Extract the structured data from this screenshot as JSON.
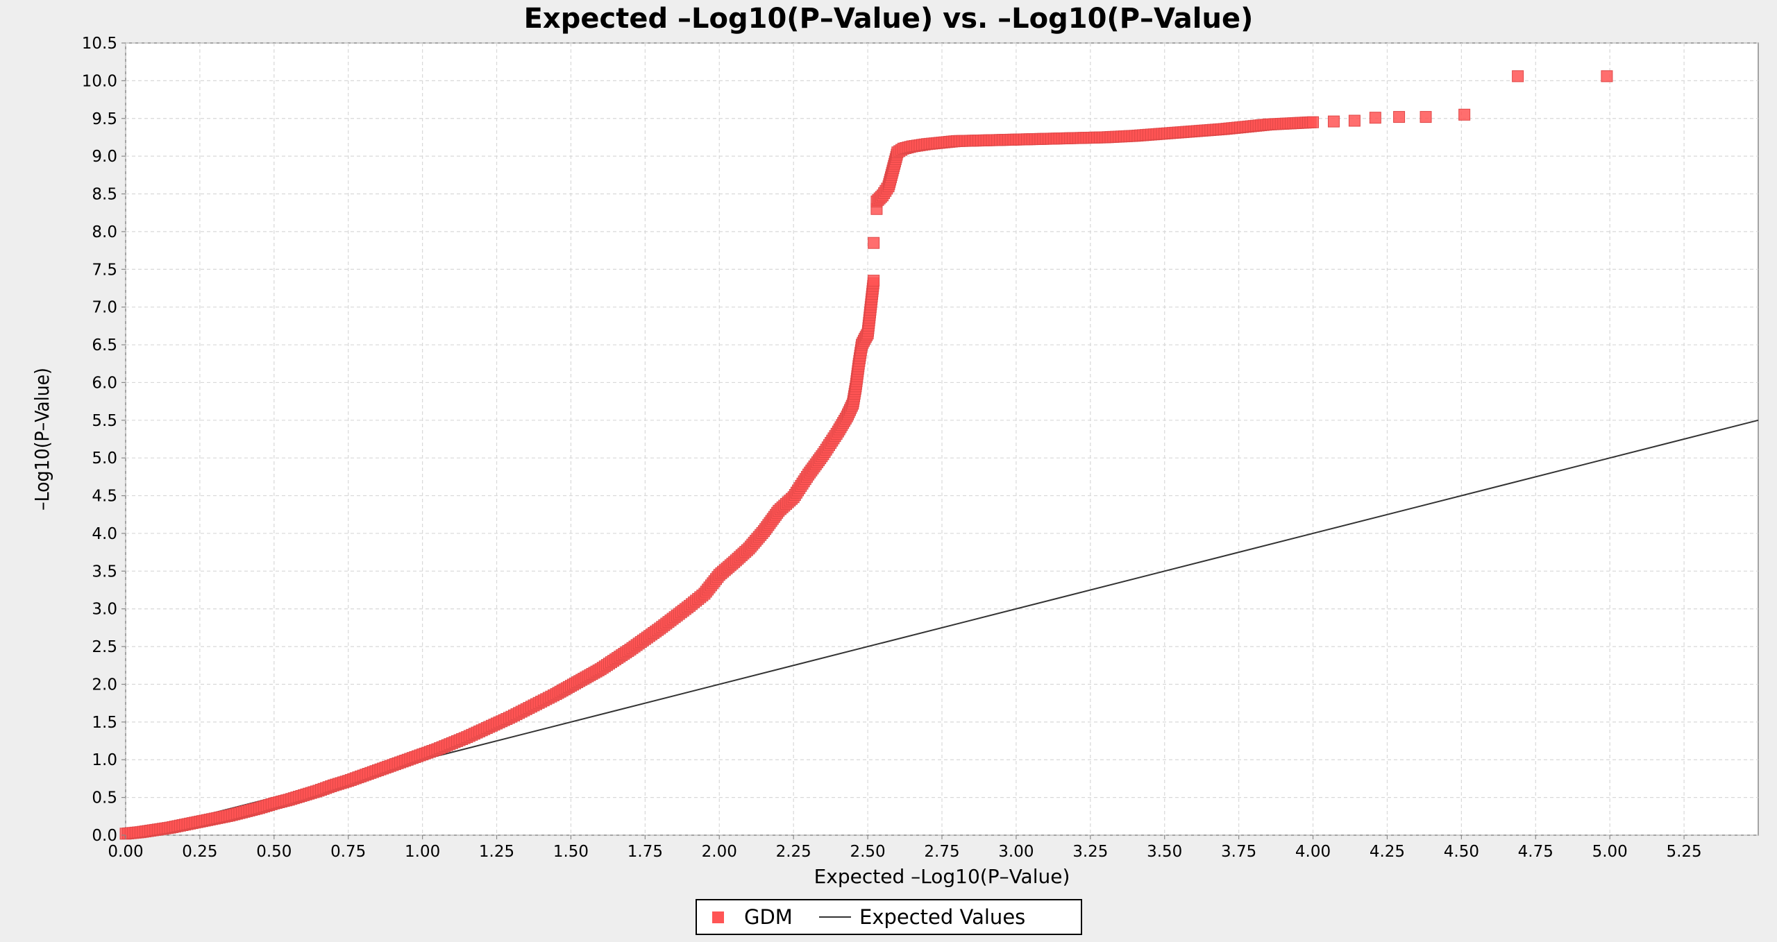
{
  "chart_data": {
    "type": "scatter",
    "title": "Expected –Log10(P–Value) vs. –Log10(P–Value)",
    "xlabel": "Expected –Log10(P–Value)",
    "ylabel": "–Log10(P–Value)",
    "xlim": [
      0,
      5.5
    ],
    "ylim": [
      0,
      10.5
    ],
    "x_ticks": [
      "0.00",
      "0.25",
      "0.50",
      "0.75",
      "1.00",
      "1.25",
      "1.50",
      "1.75",
      "2.00",
      "2.25",
      "2.50",
      "2.75",
      "3.00",
      "3.25",
      "3.50",
      "3.75",
      "4.00",
      "4.25",
      "4.50",
      "4.75",
      "5.00",
      "5.25"
    ],
    "y_ticks": [
      "0.0",
      "0.5",
      "1.0",
      "1.5",
      "2.0",
      "2.5",
      "3.0",
      "3.5",
      "4.0",
      "4.5",
      "5.0",
      "5.5",
      "6.0",
      "6.5",
      "7.0",
      "7.5",
      "8.0",
      "8.5",
      "9.0",
      "9.5",
      "10.0",
      "10.5"
    ],
    "grid": true,
    "legend_position": "bottom",
    "series": [
      {
        "name": "GDM",
        "kind": "scatter",
        "marker": "square",
        "color": "#ff5555",
        "points": [
          [
            0.0,
            0.02
          ],
          [
            0.05,
            0.04
          ],
          [
            0.1,
            0.07
          ],
          [
            0.15,
            0.1
          ],
          [
            0.2,
            0.14
          ],
          [
            0.25,
            0.18
          ],
          [
            0.3,
            0.22
          ],
          [
            0.35,
            0.26
          ],
          [
            0.4,
            0.31
          ],
          [
            0.45,
            0.36
          ],
          [
            0.5,
            0.42
          ],
          [
            0.55,
            0.47
          ],
          [
            0.6,
            0.53
          ],
          [
            0.65,
            0.59
          ],
          [
            0.7,
            0.66
          ],
          [
            0.75,
            0.72
          ],
          [
            0.8,
            0.79
          ],
          [
            0.85,
            0.86
          ],
          [
            0.9,
            0.93
          ],
          [
            0.95,
            1.0
          ],
          [
            1.0,
            1.07
          ],
          [
            1.05,
            1.14
          ],
          [
            1.1,
            1.22
          ],
          [
            1.15,
            1.3
          ],
          [
            1.2,
            1.39
          ],
          [
            1.25,
            1.48
          ],
          [
            1.3,
            1.57
          ],
          [
            1.35,
            1.67
          ],
          [
            1.4,
            1.77
          ],
          [
            1.45,
            1.87
          ],
          [
            1.5,
            1.98
          ],
          [
            1.55,
            2.09
          ],
          [
            1.6,
            2.2
          ],
          [
            1.65,
            2.33
          ],
          [
            1.7,
            2.46
          ],
          [
            1.75,
            2.6
          ],
          [
            1.8,
            2.74
          ],
          [
            1.85,
            2.89
          ],
          [
            1.9,
            3.04
          ],
          [
            1.95,
            3.2
          ],
          [
            2.0,
            3.45
          ],
          [
            2.05,
            3.62
          ],
          [
            2.1,
            3.8
          ],
          [
            2.15,
            4.03
          ],
          [
            2.2,
            4.3
          ],
          [
            2.25,
            4.48
          ],
          [
            2.3,
            4.78
          ],
          [
            2.35,
            5.05
          ],
          [
            2.4,
            5.35
          ],
          [
            2.43,
            5.55
          ],
          [
            2.45,
            5.72
          ],
          [
            2.46,
            5.95
          ],
          [
            2.47,
            6.25
          ],
          [
            2.48,
            6.5
          ],
          [
            2.49,
            6.58
          ],
          [
            2.5,
            6.65
          ],
          [
            2.51,
            7.0
          ],
          [
            2.52,
            7.35
          ],
          [
            2.52,
            7.85
          ],
          [
            2.53,
            8.3
          ],
          [
            2.53,
            8.4
          ],
          [
            2.55,
            8.48
          ],
          [
            2.57,
            8.6
          ],
          [
            2.58,
            8.75
          ],
          [
            2.59,
            8.9
          ],
          [
            2.6,
            9.05
          ],
          [
            2.62,
            9.1
          ],
          [
            2.65,
            9.13
          ],
          [
            2.7,
            9.16
          ],
          [
            2.75,
            9.18
          ],
          [
            2.8,
            9.2
          ],
          [
            2.9,
            9.21
          ],
          [
            3.0,
            9.22
          ],
          [
            3.1,
            9.23
          ],
          [
            3.2,
            9.24
          ],
          [
            3.3,
            9.25
          ],
          [
            3.4,
            9.27
          ],
          [
            3.5,
            9.3
          ],
          [
            3.6,
            9.33
          ],
          [
            3.7,
            9.36
          ],
          [
            3.8,
            9.4
          ],
          [
            3.85,
            9.42
          ],
          [
            3.9,
            9.43
          ],
          [
            3.95,
            9.44
          ],
          [
            4.0,
            9.45
          ],
          [
            4.07,
            9.46
          ],
          [
            4.14,
            9.47
          ],
          [
            4.21,
            9.51
          ],
          [
            4.29,
            9.52
          ],
          [
            4.38,
            9.52
          ],
          [
            4.51,
            9.55
          ],
          [
            4.69,
            10.06
          ],
          [
            4.99,
            10.06
          ]
        ]
      },
      {
        "name": "Expected Values",
        "kind": "line",
        "color": "#333333",
        "points": [
          [
            0,
            0
          ],
          [
            5.5,
            5.5
          ]
        ]
      }
    ]
  }
}
